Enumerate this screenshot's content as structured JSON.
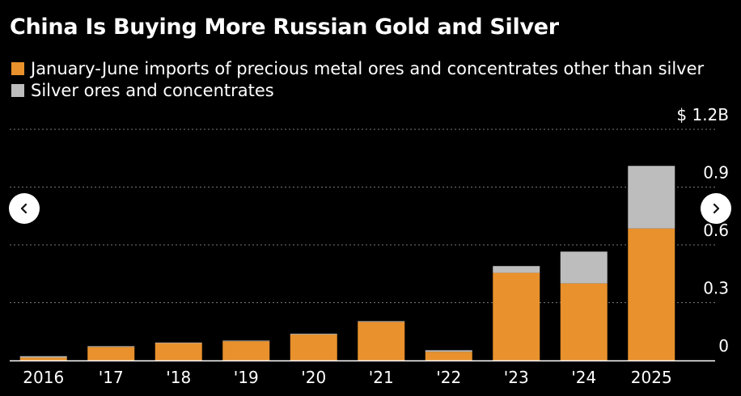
{
  "chart_data": {
    "type": "bar",
    "stacked": true,
    "title": "China Is Buying More Russian Gold and Silver",
    "categories": [
      "2016",
      "'17",
      "'18",
      "'19",
      "'20",
      "'21",
      "'22",
      "'23",
      "'24",
      "2025"
    ],
    "series": [
      {
        "name": "January-June imports of precious metal ores and concentrates other than silver",
        "color": "#E8912D",
        "values": [
          0.015,
          0.07,
          0.09,
          0.1,
          0.135,
          0.2,
          0.045,
          0.455,
          0.4,
          0.685
        ]
      },
      {
        "name": "Silver ores and concentrates",
        "color": "#BDBDBD",
        "values": [
          0.007,
          0.004,
          0.003,
          0.003,
          0.004,
          0.004,
          0.008,
          0.035,
          0.165,
          0.325
        ]
      }
    ],
    "y_ticks": [
      {
        "value": 1.2,
        "label": "$ 1.2B"
      },
      {
        "value": 0.9,
        "label": "0.9"
      },
      {
        "value": 0.6,
        "label": "0.6"
      },
      {
        "value": 0.3,
        "label": "0.3"
      },
      {
        "value": 0,
        "label": "0"
      }
    ],
    "ylim": [
      0,
      1.2
    ],
    "grid": true,
    "legend_position": "top-left"
  },
  "colors": {
    "background": "#000000",
    "gridline": "#777777",
    "axis": "#ffffff",
    "text": "#ffffff"
  },
  "nav": {
    "prev_icon": "chevron-left-icon",
    "next_icon": "chevron-right-icon"
  }
}
